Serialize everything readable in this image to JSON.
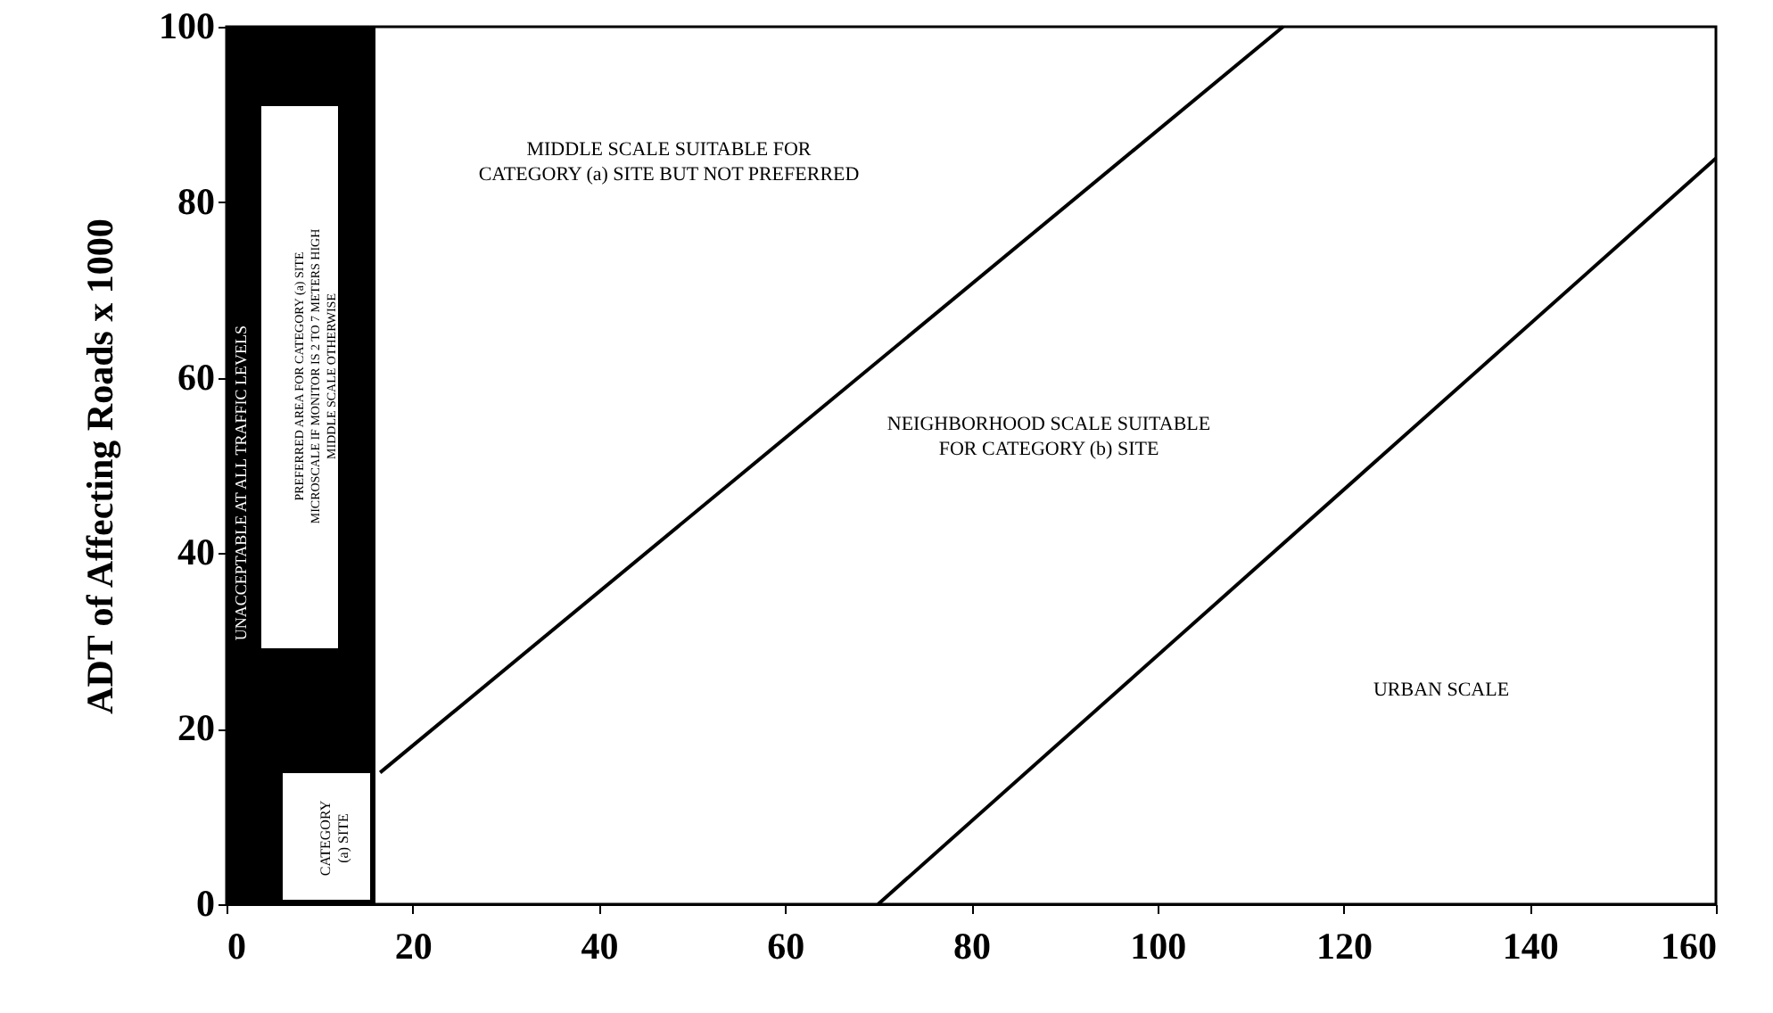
{
  "chart_data": {
    "type": "line",
    "ylabel": "ADT of Affecting Roads x 1000",
    "xlim": [
      0,
      160
    ],
    "xticks": [
      0,
      20,
      40,
      60,
      80,
      100,
      120,
      140,
      160
    ],
    "ylim": [
      0,
      100
    ],
    "yticks": [
      0,
      20,
      40,
      60,
      80,
      100
    ],
    "series": [
      {
        "color": "#000000",
        "x": [
          16.5,
          113.5
        ],
        "values": [
          15,
          100
        ]
      },
      {
        "color": "#000000",
        "x": [
          70,
          160
        ],
        "values": [
          0,
          85
        ]
      }
    ],
    "bands": [
      {
        "axis": "x",
        "from": 0,
        "to": 16,
        "color": "#000000",
        "label": "UNACCEPTABLE AT ALL TRAFFIC LEVELS"
      }
    ],
    "annotations": [
      "PREFERRED AREA FOR CATEGORY (a) SITE\nMICROSCALE IF MONITOR IS 2 TO 7 METERS HIGH\nMIDDLE SCALE OTHERWISE",
      "CATEGORY\n(a) SITE",
      "MIDDLE SCALE SUITABLE FOR\nCATEGORY (a) SITE BUT NOT PREFERRED",
      "NEIGHBORHOOD SCALE SUITABLE\nFOR CATEGORY (b) SITE",
      "URBAN SCALE"
    ]
  }
}
